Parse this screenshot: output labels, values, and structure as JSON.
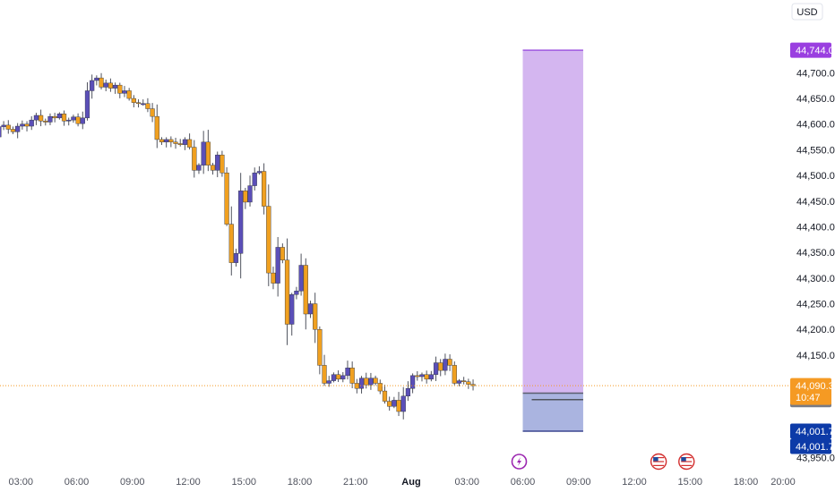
{
  "currency": "USD",
  "colors": {
    "up": "#5b4fb8",
    "down": "#f0a020",
    "target_zone": "#d4b6f0",
    "target_edge": "#a058e0",
    "stop_zone": "#aab4e0",
    "stop_edge": "#3c4690",
    "last_price": "#f59a23",
    "badge_grey": "#787b86",
    "badge_navy": "#0d3ba8",
    "badge_purple": "#9a3fe0"
  },
  "chart_data": {
    "type": "candlestick",
    "ylim": [
      43925,
      44800
    ],
    "y_ticks": [
      43950,
      44000,
      44050,
      44100,
      44150,
      44200,
      44250,
      44300,
      44350,
      44400,
      44450,
      44500,
      44550,
      44600,
      44650,
      44700
    ],
    "y_tick_labels": [
      "43,950.0",
      "",
      "",
      "",
      "44,150.0",
      "44,200.0",
      "44,250.0",
      "44,300.0",
      "44,350.0",
      "44,400.0",
      "44,450.0",
      "44,500.0",
      "44,550.0",
      "44,600.0",
      "44,650.0",
      "44,700.0"
    ],
    "x_ticks": [
      {
        "label": "03:00",
        "hour": 3
      },
      {
        "label": "06:00",
        "hour": 6
      },
      {
        "label": "09:00",
        "hour": 9
      },
      {
        "label": "12:00",
        "hour": 12
      },
      {
        "label": "15:00",
        "hour": 15
      },
      {
        "label": "18:00",
        "hour": 18
      },
      {
        "label": "21:00",
        "hour": 21
      },
      {
        "label": "Aug",
        "hour": 24
      },
      {
        "label": "03:00",
        "hour": 27
      },
      {
        "label": "06:00",
        "hour": 30
      },
      {
        "label": "09:00",
        "hour": 33
      },
      {
        "label": "12:00",
        "hour": 36
      },
      {
        "label": "15:00",
        "hour": 39
      },
      {
        "label": "18:00",
        "hour": 42
      },
      {
        "label": "20:00",
        "hour": 44
      }
    ],
    "candle_interval_hours": 0.25,
    "closes": [
      44560,
      44565,
      44560,
      44568,
      44565,
      44580,
      44575,
      44595,
      44598,
      44590,
      44585,
      44596,
      44600,
      44596,
      44608,
      44617,
      44606,
      44604,
      44615,
      44612,
      44620,
      44606,
      44608,
      44614,
      44601,
      44612,
      44665,
      44685,
      44690,
      44672,
      44680,
      44670,
      44676,
      44660,
      44665,
      44650,
      44642,
      44640,
      44640,
      44630,
      44615,
      44570,
      44565,
      44570,
      44565,
      44562,
      44560,
      44570,
      44555,
      44510,
      44520,
      44565,
      44520,
      44510,
      44540,
      44505,
      44405,
      44330,
      44348,
      44470,
      44448,
      44480,
      44505,
      44508,
      44440,
      44310,
      44290,
      44360,
      44335,
      44210,
      44268,
      44275,
      44325,
      44230,
      44250,
      44200,
      44130,
      44095,
      44100,
      44112,
      44103,
      44110,
      44125,
      44095,
      44085,
      44105,
      44092,
      44105,
      44095,
      44080,
      44060,
      44050,
      44062,
      44040,
      44070,
      44085,
      44110,
      44108,
      44112,
      44103,
      44112,
      44135,
      44120,
      44142,
      44130,
      44095,
      44100,
      44098,
      44093,
      44090.3
    ],
    "last_price": 44090.3,
    "last_price_label": "44,090.3",
    "countdown": "10:47",
    "position": {
      "type": "long",
      "start_hour": 30.0,
      "end_hour": 33.25,
      "target": 44744.0,
      "target_label": "44,744.0",
      "entry": 44075.7,
      "entry_label": "44,075.7",
      "secondary": 44063.1,
      "secondary_label": "44,063.1",
      "stop": 44001.7,
      "stop_label": "44,001.7"
    },
    "events": [
      {
        "type": "lightning",
        "hour": 30.0
      },
      {
        "type": "us-flag",
        "hour": 37.5
      },
      {
        "type": "us-flag",
        "hour": 39.0
      }
    ]
  }
}
